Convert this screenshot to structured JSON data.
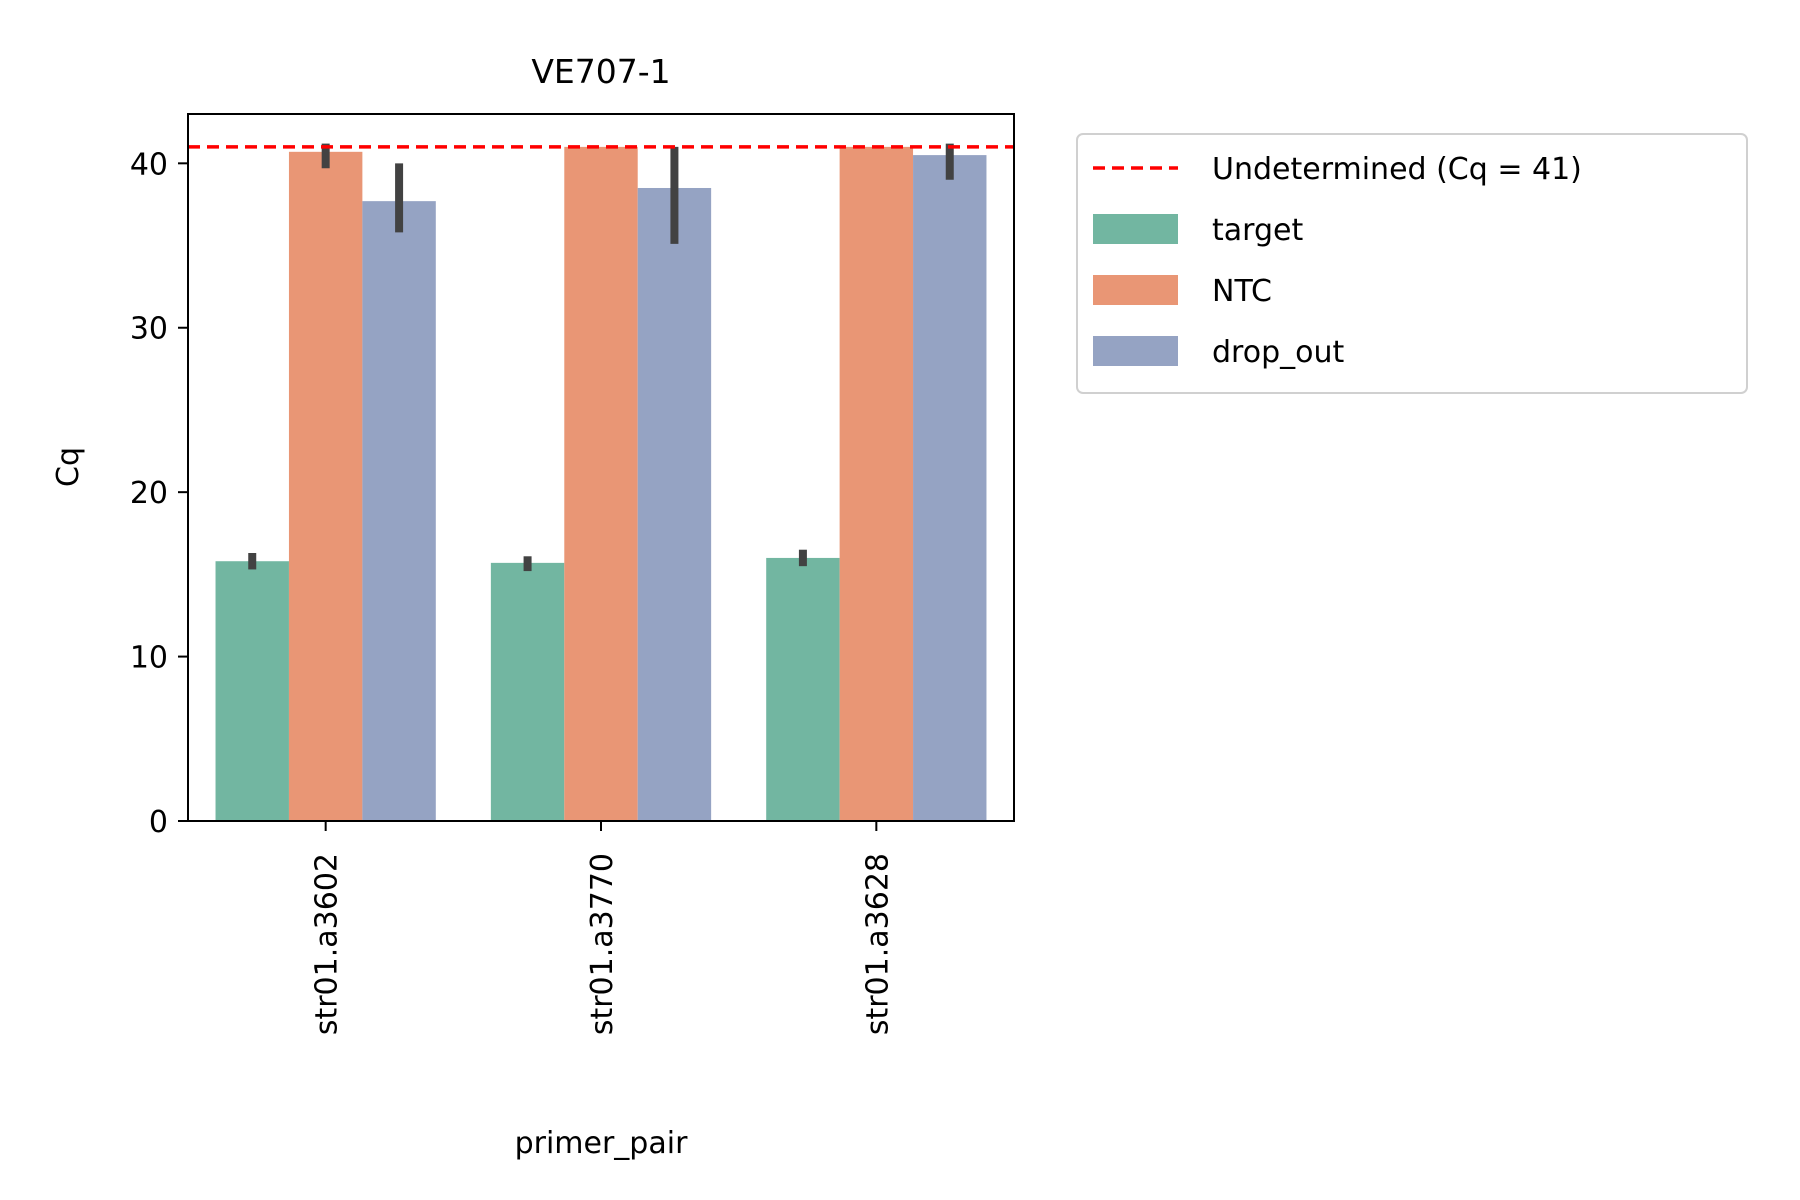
{
  "chart_data": {
    "type": "bar",
    "title": "VE707-1",
    "xlabel": "primer_pair",
    "ylabel": "Cq",
    "categories": [
      "str01.a3602",
      "str01.a3770",
      "str01.a3628"
    ],
    "ylim": [
      0,
      43
    ],
    "yticks": [
      0,
      10,
      20,
      30,
      40
    ],
    "series": [
      {
        "name": "target",
        "color": "#72b6a1",
        "values": [
          15.8,
          15.7,
          16.0
        ],
        "error": [
          [
            15.3,
            16.3
          ],
          [
            15.2,
            16.1
          ],
          [
            15.5,
            16.5
          ]
        ]
      },
      {
        "name": "NTC",
        "color": "#e99675",
        "values": [
          40.7,
          41.0,
          41.0
        ],
        "error": [
          [
            39.7,
            41.2
          ],
          [
            41.0,
            41.0
          ],
          [
            41.0,
            41.0
          ]
        ]
      },
      {
        "name": "drop_out",
        "color": "#95a3c3",
        "values": [
          37.7,
          38.5,
          40.5
        ],
        "error": [
          [
            35.8,
            40.0
          ],
          [
            35.1,
            41.0
          ],
          [
            39.0,
            41.2
          ]
        ]
      }
    ],
    "reference_line": {
      "label": "Undetermined (Cq = 41)",
      "value": 41,
      "color": "#ff0000",
      "style": "dashed"
    },
    "legend_position": "outside-right-top"
  }
}
